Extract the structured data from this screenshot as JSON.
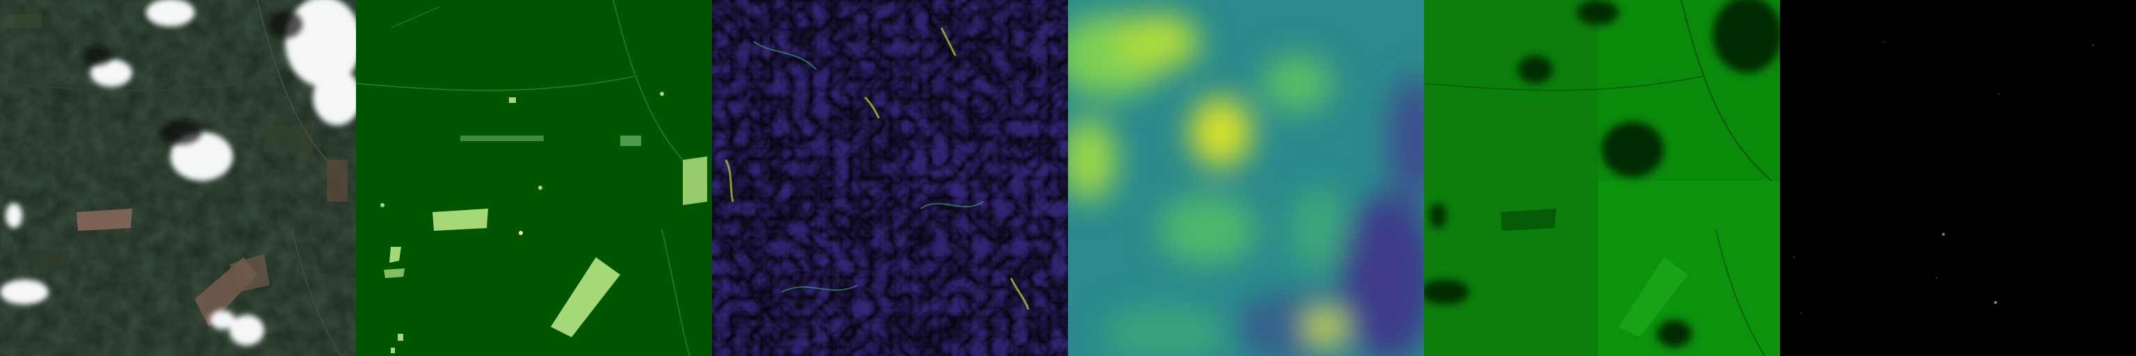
{
  "panels": [
    {
      "name": "rgb-satellite",
      "label": ""
    },
    {
      "name": "land-cover-mask",
      "label": ""
    },
    {
      "name": "slope-map",
      "label": ""
    },
    {
      "name": "elevation-map",
      "label": ""
    },
    {
      "name": "green-band",
      "label": ""
    },
    {
      "name": "change-mask",
      "label": ""
    }
  ],
  "colors": {
    "forest_dark": "#17241a",
    "mask_green": "#005500",
    "mask_light": "#a6d877",
    "viridis_low": "#440154",
    "viridis_mid": "#21918c",
    "viridis_high": "#fde725",
    "green_band": "#0a8a0a",
    "black": "#000000"
  }
}
